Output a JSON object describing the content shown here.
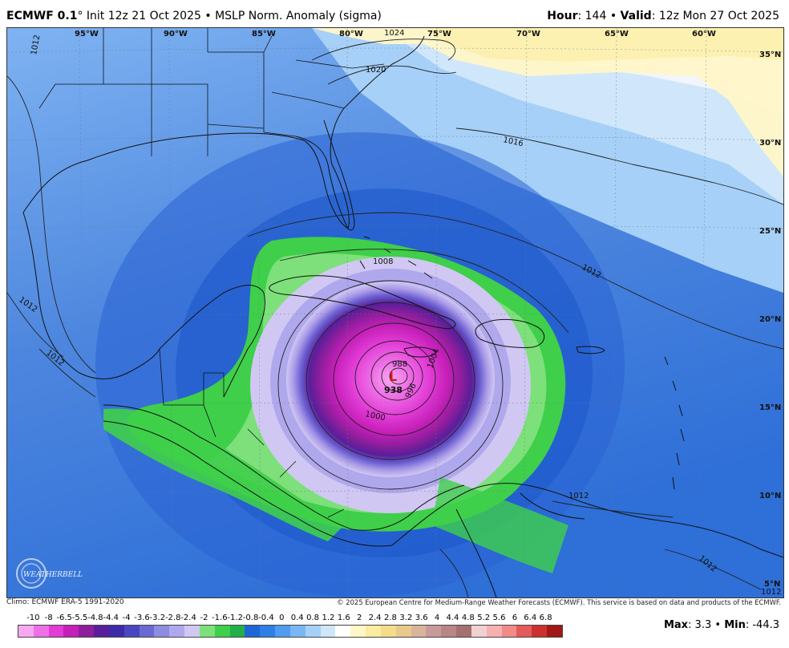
{
  "header": {
    "model": "ECMWF 0.1",
    "degree": "°",
    "init": "Init 12z 21 Oct 2025",
    "separator": "•",
    "product": "MSLP Norm. Anomaly (sigma)",
    "hour_label": "Hour",
    "hour_value": ": 144",
    "valid_label": "Valid",
    "valid_value": ": 12z Mon 27 Oct 2025"
  },
  "map": {
    "longitude_labels": [
      "95°W",
      "90°W",
      "85°W",
      "80°W",
      "75°W",
      "70°W",
      "65°W",
      "60°W"
    ],
    "latitude_labels": [
      "35°N",
      "30°N",
      "25°N",
      "20°N",
      "15°N",
      "10°N",
      "5°N"
    ],
    "isobar_labels": [
      "1024",
      "1020",
      "1016",
      "1012",
      "1012",
      "1012",
      "1012",
      "1012",
      "1012",
      "1012",
      "1008",
      "1004",
      "1000",
      "996",
      "988"
    ],
    "storm": {
      "symbol": "L",
      "central_pressure": "938"
    },
    "logo_text": "WEATHERBELL"
  },
  "footer": {
    "climo": "Climo: ECMWF ERA-5 1991-2020",
    "copyright": "© 2025 European Centre for Medium-Range Weather Forecasts (ECMWF). This service is based on data and products of the ECMWF."
  },
  "legend": {
    "ticks": [
      "-10",
      "-8",
      "-6.5",
      "-5.5",
      "-4.8",
      "-4.4",
      "-4",
      "-3.6",
      "-3.2",
      "-2.8",
      "-2.4",
      "-2",
      "-1.6",
      "-1.2",
      "-0.8",
      "-0.4",
      "0",
      "0.4",
      "0.8",
      "1.2",
      "1.6",
      "2",
      "2.4",
      "2.8",
      "3.2",
      "3.6",
      "4",
      "4.4",
      "4.8",
      "5.2",
      "5.6",
      "6",
      "6.4",
      "6.8"
    ],
    "colors": [
      "#f7a8f0",
      "#ee6fe6",
      "#e23bd6",
      "#c51fb8",
      "#8e1e9c",
      "#5a1e9a",
      "#3d2aa8",
      "#4a46c0",
      "#6a6ad2",
      "#8c8ce0",
      "#b0a8ec",
      "#d0c8f2",
      "#7de07a",
      "#3fcf4a",
      "#22b04a",
      "#1e66d8",
      "#2d7fe6",
      "#4f9bf0",
      "#79b7f4",
      "#a6d0f7",
      "#d0e6fa",
      "#ffffff",
      "#fff7c8",
      "#fbeca0",
      "#f5dc8a",
      "#e9c98a",
      "#d9b49a",
      "#c99a9a",
      "#b98686",
      "#a57070",
      "#f0d0d0",
      "#f6b0b0",
      "#f28a8a",
      "#e45a5a",
      "#cc3030",
      "#a01818"
    ],
    "max_label": "Max",
    "max_value": ": 3.3 •",
    "min_label": "Min",
    "min_value": ": -44.3"
  }
}
